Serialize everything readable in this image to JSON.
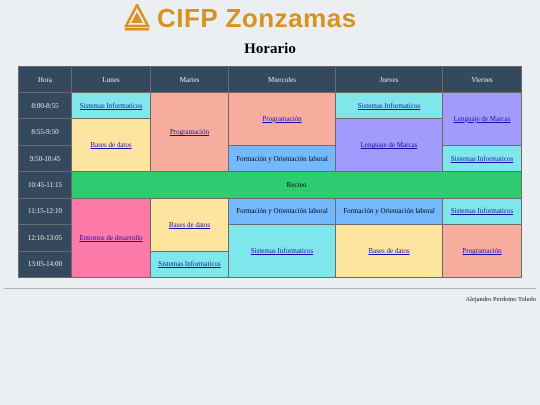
{
  "brand": {
    "name": "CIFP Zonzamas",
    "accent": "#d7921f"
  },
  "title": "Horario",
  "table": {
    "headers": [
      "Hora",
      "Lunes",
      "Martes",
      "Miercoles",
      "Jueves",
      "Viernes"
    ],
    "hours": [
      "8:00-8:55",
      "8:55-9:50",
      "9:50-10:45",
      "10:45-11:15",
      "11:15-12:10",
      "12:10-13:05",
      "13:05-14:00"
    ],
    "cells": {
      "lun_si": "Sistemas Informaticos",
      "lun_bd": "Bases de datos",
      "lun_ed": "Entornos de desarrollo",
      "mar_prog": "Programación",
      "mar_bd": "Bases de datos",
      "mar_si": "Sistemas Informaticos",
      "mie_prog": "Programación",
      "mie_fol1": "Formación y Orientación laboral",
      "mie_fol2": "Formación y Orientación laboral",
      "mie_si": "Sistemas Informaticos",
      "jue_si": "Sistemas Informaticos",
      "jue_lm": "Lenguaje de Marcas",
      "jue_fol": "Formación y Orientación laboral",
      "jue_bd": "Bases de datos",
      "vie_lm": "Lenguaje de Marcas",
      "vie_si1": "Sistemas Informaticos",
      "vie_si2": "Sistemas Informaticos",
      "vie_prog": "Programación",
      "recreo": "Recreo"
    }
  },
  "footer": {
    "author": "Alejandro Perdomo Toledo"
  },
  "colors": {
    "header_bg": "#34495e",
    "cyan": "#7fe7ec",
    "yellow": "#fde5a0",
    "salmon": "#f6ad9d",
    "purple": "#a29bfe",
    "blue": "#74b9ff",
    "pink": "#fd79a8",
    "green": "#2ecc71"
  }
}
